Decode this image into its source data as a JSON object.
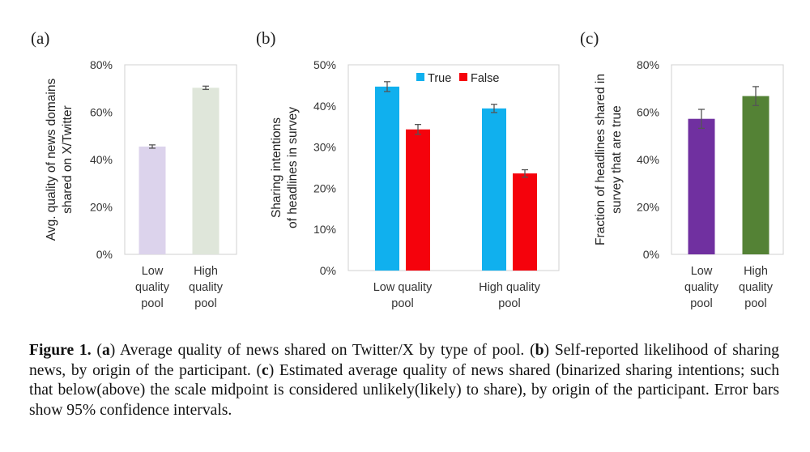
{
  "panels": {
    "a": {
      "label": "(a)"
    },
    "b": {
      "label": "(b)"
    },
    "c": {
      "label": "(c)"
    }
  },
  "chart_data": [
    {
      "id": "a",
      "type": "bar",
      "ylabel": "Avg. quality of news domains shared on X/Twitter",
      "ylabel_lines": [
        "Avg. quality of news domains",
        "shared on X/Twitter"
      ],
      "ylim": [
        0,
        80
      ],
      "yticks": [
        "0%",
        "20%",
        "40%",
        "60%",
        "80%"
      ],
      "categories": [
        "Low quality pool",
        "High quality pool"
      ],
      "category_lines": [
        [
          "Low",
          "quality",
          "pool"
        ],
        [
          "High",
          "quality",
          "pool"
        ]
      ],
      "values": [
        45.5,
        70.3
      ],
      "errors": [
        0.7,
        0.7
      ],
      "colors": [
        "#dcd3ec",
        "#dfe6da"
      ]
    },
    {
      "id": "b",
      "type": "bar",
      "ylabel": "Sharing intentions of headlines in survey",
      "ylabel_lines": [
        "Sharing intentions",
        "of headlines in survey"
      ],
      "ylim": [
        0,
        50
      ],
      "yticks": [
        "0%",
        "10%",
        "20%",
        "30%",
        "40%",
        "50%"
      ],
      "categories": [
        "Low quality pool",
        "High quality pool"
      ],
      "category_lines": [
        [
          "Low quality",
          "pool"
        ],
        [
          "High quality",
          "pool"
        ]
      ],
      "series": [
        {
          "name": "True",
          "values": [
            44.7,
            39.4
          ],
          "errors": [
            1.2,
            1.0
          ],
          "color": "#10b0ee"
        },
        {
          "name": "False",
          "values": [
            34.3,
            23.6
          ],
          "errors": [
            1.2,
            0.9
          ],
          "color": "#f5020c"
        }
      ],
      "legend": "top-center"
    },
    {
      "id": "c",
      "type": "bar",
      "ylabel": "Fraction of headlines shared in survey that are true",
      "ylabel_lines": [
        "Fraction of headlines shared in",
        "survey that are true"
      ],
      "ylim": [
        0,
        80
      ],
      "yticks": [
        "0%",
        "20%",
        "40%",
        "60%",
        "80%"
      ],
      "categories": [
        "Low quality pool",
        "High quality pool"
      ],
      "category_lines": [
        [
          "Low",
          "quality",
          "pool"
        ],
        [
          "High",
          "quality",
          "pool"
        ]
      ],
      "values": [
        57.2,
        66.8
      ],
      "errors": [
        4.0,
        4.0
      ],
      "colors": [
        "#7030a0",
        "#548235"
      ]
    }
  ],
  "caption": {
    "figure_label": "Figure 1.",
    "open": "(",
    "close": ")",
    "a_letter": "a",
    "a_text": " Average quality of news shared on Twitter/X by type of pool. ",
    "b_letter": "b",
    "b_text": " Self-reported likelihood of sharing news, by origin of the participant. ",
    "c_letter": "c",
    "c_text": " Estimated average quality of news shared (binarized sharing intentions; such that below(above) the scale midpoint is considered unlikely(likely) to share), by origin of the participant. Error bars show 95% confidence intervals."
  }
}
